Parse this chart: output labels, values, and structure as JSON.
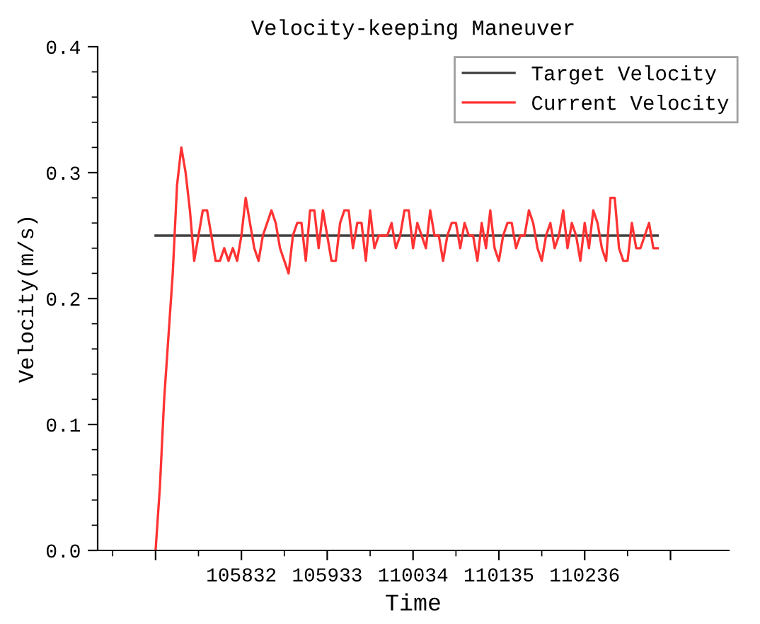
{
  "chart_data": {
    "type": "line",
    "title": "Velocity-keeping Maneuver",
    "xlabel": "Time",
    "ylabel": "Velocity(m/s)",
    "categories": [
      null,
      null,
      null,
      null,
      null,
      null,
      null,
      null,
      null,
      null,
      null,
      null,
      null,
      null,
      null,
      null,
      null,
      null,
      null,
      null,
      "105832",
      null,
      null,
      null,
      null,
      null,
      null,
      null,
      null,
      null,
      null,
      null,
      null,
      null,
      null,
      null,
      null,
      null,
      null,
      null,
      "105933",
      null,
      null,
      null,
      null,
      null,
      null,
      null,
      null,
      null,
      null,
      null,
      null,
      null,
      null,
      null,
      null,
      null,
      null,
      null,
      "110034",
      null,
      null,
      null,
      null,
      null,
      null,
      null,
      null,
      null,
      null,
      null,
      null,
      null,
      null,
      null,
      null,
      null,
      null,
      null,
      "110135",
      null,
      null,
      null,
      null,
      null,
      null,
      null,
      null,
      null,
      null,
      null,
      null,
      null,
      null,
      null,
      null,
      null,
      null,
      null,
      "110236",
      null,
      null,
      null,
      null,
      null,
      null,
      null,
      null,
      null,
      null,
      null,
      null,
      null,
      null,
      null,
      null,
      null,
      null,
      null,
      null
    ],
    "ylim": [
      0,
      0.4
    ],
    "yticks": [
      {
        "value": 0,
        "label": "0.0"
      },
      {
        "value": 0.1,
        "label": "0.1"
      },
      {
        "value": 0.2,
        "label": "0.2"
      },
      {
        "value": 0.3,
        "label": "0.3"
      },
      {
        "value": 0.4,
        "label": "0.4"
      }
    ],
    "grid": false,
    "legend": "top right",
    "marker": "none",
    "line_style": "solid",
    "series": [
      {
        "name": "Target Velocity",
        "color": "#404040",
        "values": [
          0.25,
          0.25,
          0.25,
          0.25,
          0.25,
          0.25,
          0.25,
          0.25,
          0.25,
          0.25,
          0.25,
          0.25,
          0.25,
          0.25,
          0.25,
          0.25,
          0.25,
          0.25,
          0.25,
          0.25,
          0.25,
          0.25,
          0.25,
          0.25,
          0.25,
          0.25,
          0.25,
          0.25,
          0.25,
          0.25,
          0.25,
          0.25,
          0.25,
          0.25,
          0.25,
          0.25,
          0.25,
          0.25,
          0.25,
          0.25,
          0.25,
          0.25,
          0.25,
          0.25,
          0.25,
          0.25,
          0.25,
          0.25,
          0.25,
          0.25,
          0.25,
          0.25,
          0.25,
          0.25,
          0.25,
          0.25,
          0.25,
          0.25,
          0.25,
          0.25,
          0.25,
          0.25,
          0.25,
          0.25,
          0.25,
          0.25,
          0.25,
          0.25,
          0.25,
          0.25,
          0.25,
          0.25,
          0.25,
          0.25,
          0.25,
          0.25,
          0.25,
          0.25,
          0.25,
          0.25,
          0.25,
          0.25,
          0.25,
          0.25,
          0.25,
          0.25,
          0.25,
          0.25,
          0.25,
          0.25,
          0.25,
          0.25,
          0.25,
          0.25,
          0.25,
          0.25,
          0.25,
          0.25,
          0.25,
          0.25,
          0.25,
          0.25,
          0.25,
          0.25,
          0.25,
          0.25,
          0.25,
          0.25,
          0.25,
          0.25,
          0.25,
          0.25,
          0.25,
          0.25,
          0.25,
          0.25,
          0.25,
          0.25,
          null,
          null,
          null
        ]
      },
      {
        "name": "Current Velocity",
        "color": "#ff3333",
        "values": [
          0,
          0.05,
          0.12,
          0.17,
          0.22,
          0.29,
          0.32,
          0.3,
          0.27,
          0.23,
          0.25,
          0.27,
          0.27,
          0.25,
          0.23,
          0.23,
          0.24,
          0.23,
          0.24,
          0.23,
          0.25,
          0.28,
          0.26,
          0.24,
          0.23,
          0.25,
          0.26,
          0.27,
          0.26,
          0.24,
          0.23,
          0.22,
          0.25,
          0.26,
          0.26,
          0.23,
          0.27,
          0.27,
          0.24,
          0.27,
          0.25,
          0.23,
          0.23,
          0.26,
          0.27,
          0.27,
          0.24,
          0.26,
          0.26,
          0.23,
          0.27,
          0.24,
          0.25,
          0.25,
          0.25,
          0.26,
          0.24,
          0.25,
          0.27,
          0.27,
          0.24,
          0.26,
          0.25,
          0.24,
          0.27,
          0.25,
          0.25,
          0.23,
          0.25,
          0.26,
          0.26,
          0.24,
          0.26,
          0.25,
          0.25,
          0.23,
          0.26,
          0.24,
          0.27,
          0.24,
          0.23,
          0.25,
          0.26,
          0.26,
          0.24,
          0.25,
          0.25,
          0.27,
          0.26,
          0.24,
          0.23,
          0.25,
          0.26,
          0.24,
          0.25,
          0.27,
          0.24,
          0.26,
          0.25,
          0.23,
          0.26,
          0.24,
          0.27,
          0.26,
          0.24,
          0.23,
          0.28,
          0.28,
          0.24,
          0.23,
          0.23,
          0.26,
          0.24,
          0.24,
          0.25,
          0.26,
          0.24,
          0.24,
          null,
          null,
          null
        ]
      }
    ]
  }
}
